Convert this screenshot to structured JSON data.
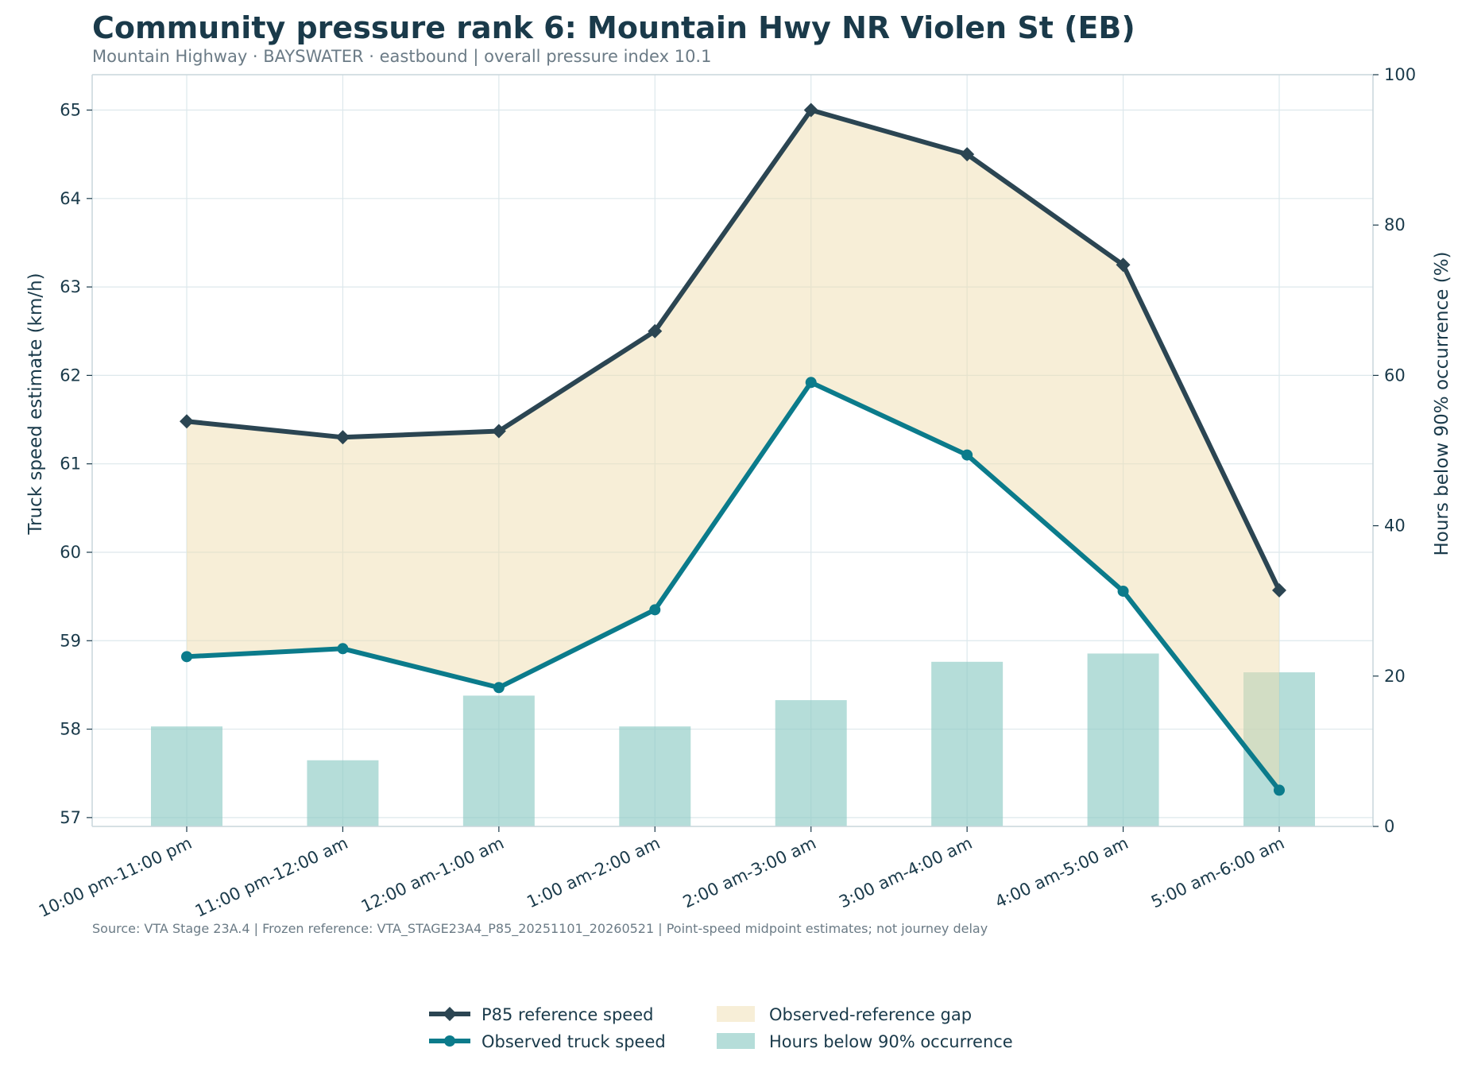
{
  "chart_data": {
    "type": "line",
    "title": "Community pressure rank 6: Mountain Hwy NR Violen St (EB)",
    "subtitle": "Mountain Highway · BAYSWATER · eastbound | overall pressure index 10.1",
    "categories": [
      "10:00 pm-11:00 pm",
      "11:00 pm-12:00 am",
      "12:00 am-1:00 am",
      "1:00 am-2:00 am",
      "2:00 am-3:00 am",
      "3:00 am-4:00 am",
      "4:00 am-5:00 am",
      "5:00 am-6:00 am"
    ],
    "series": [
      {
        "name": "P85 reference speed",
        "axis": "left",
        "kind": "line",
        "marker": "diamond",
        "color": "#2b4552",
        "values": [
          61.48,
          61.3,
          61.37,
          62.5,
          65.0,
          64.5,
          63.25,
          59.57
        ]
      },
      {
        "name": "Observed truck speed",
        "axis": "left",
        "kind": "line",
        "marker": "circle",
        "color": "#0b7b8b",
        "values": [
          58.82,
          58.91,
          58.47,
          59.35,
          61.92,
          61.1,
          59.56,
          57.31
        ]
      },
      {
        "name": "Hours below 90% occurrence",
        "axis": "right",
        "kind": "bar",
        "color": "#8ecbc4",
        "values": [
          13.3,
          8.8,
          17.4,
          13.3,
          16.8,
          21.9,
          23.0,
          20.5
        ]
      }
    ],
    "fill_between": {
      "name": "Observed-reference gap",
      "color": "#f0ddb0"
    },
    "ylabel": "Truck speed estimate (km/h)",
    "y2label": "Hours below 90% occurrence (%)",
    "ylim": [
      56.9,
      65.4
    ],
    "y2lim": [
      0,
      100
    ],
    "yticks": [
      57,
      58,
      59,
      60,
      61,
      62,
      63,
      64,
      65
    ],
    "y2ticks": [
      0,
      20,
      40,
      60,
      80,
      100
    ],
    "grid": true,
    "legend_position": "bottom-center",
    "source_note": "Source: VTA Stage 23A.4 | Frozen reference: VTA_STAGE23A4_P85_20251101_20260521 | Point-speed midpoint estimates; not journey delay"
  }
}
